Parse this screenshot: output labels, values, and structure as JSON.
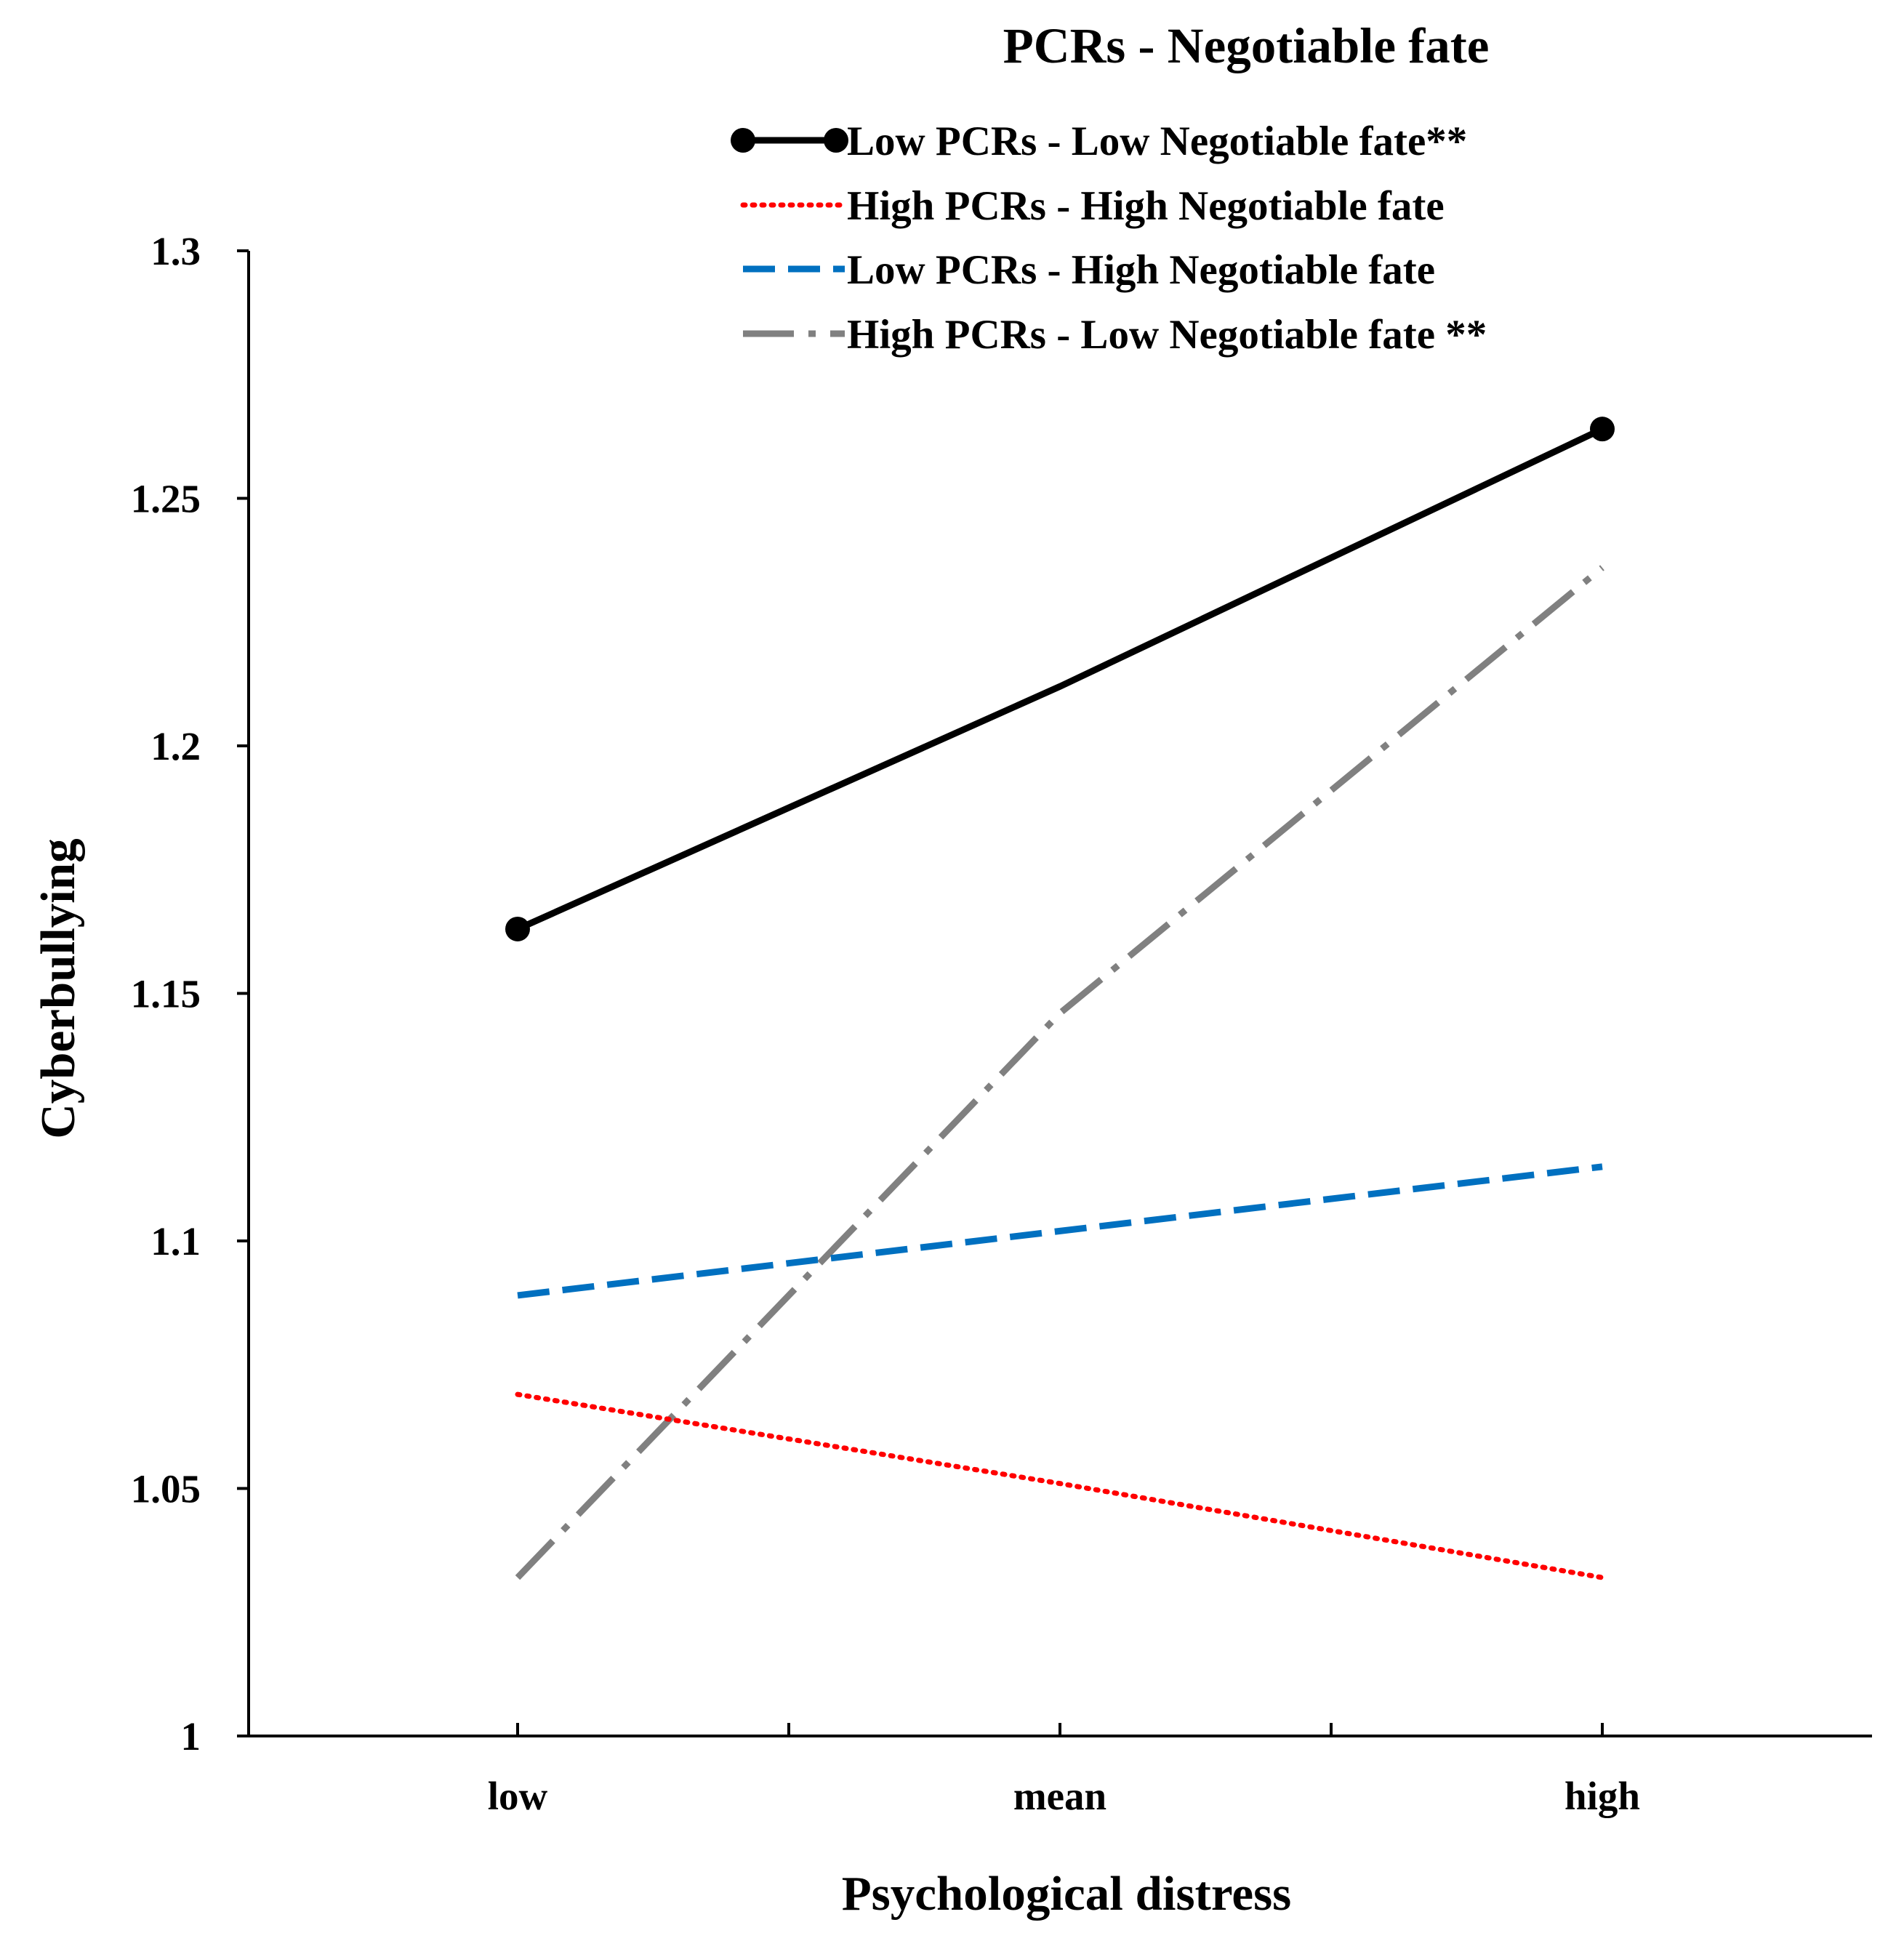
{
  "chart_data": {
    "type": "line",
    "title": "PCRs - Negotiable fate",
    "xlabel": "Psychological distress",
    "ylabel": "Cyberbullying",
    "categories": [
      "low",
      "mean",
      "high"
    ],
    "ylim": [
      1,
      1.3
    ],
    "yticks": [
      1,
      1.05,
      1.1,
      1.15,
      1.2,
      1.25,
      1.3
    ],
    "ytick_labels": [
      "1",
      "1.05",
      "1.1",
      "1.15",
      "1.2",
      "1.25",
      "1.3"
    ],
    "legend_position": "top-right",
    "series": [
      {
        "name": "Low PCRs - Low Negotiable fate**",
        "values": [
          1.163,
          1.212,
          1.264
        ],
        "color": "#000000",
        "style": "solid",
        "markers": true
      },
      {
        "name": "High PCRs - High Negotiable fate",
        "values": [
          1.069,
          1.051,
          1.032
        ],
        "color": "#ff0000",
        "style": "dotted",
        "markers": false
      },
      {
        "name": "Low PCRs - High Negotiable fate",
        "values": [
          1.089,
          1.102,
          1.115
        ],
        "color": "#0070c0",
        "style": "dashed",
        "markers": false
      },
      {
        "name": "High PCRs - Low Negotiable fate **",
        "values": [
          1.032,
          1.146,
          1.236
        ],
        "color": "#808080",
        "style": "dashdot",
        "markers": false
      }
    ]
  }
}
